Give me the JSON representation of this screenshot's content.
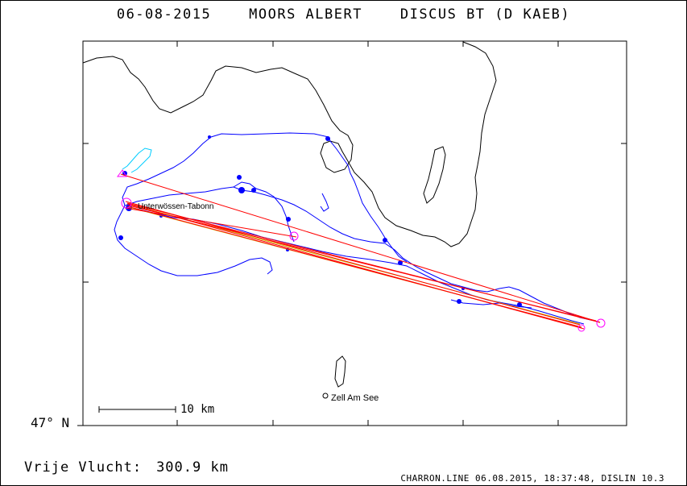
{
  "header": {
    "date": "06-08-2015",
    "pilot": "MOORS ALBERT",
    "glider": "DISCUS BT (D KAEB)"
  },
  "map": {
    "latitude_label": "47° N",
    "scale_label": "10 km",
    "place_label": "Zell Am See",
    "start_label": "Unterwössen-Tabonn",
    "colors": {
      "coastline": "#000000",
      "track": "#0000ff",
      "track_start": "#00ccff",
      "task_lines": "#ff0000",
      "turnpoints": "#ff00ff",
      "secondary_lines": "#c8c800"
    }
  },
  "summary": {
    "label": "Vrije Vlucht:",
    "distance": "300.9 km"
  },
  "footer": {
    "text": "CHARRON.LINE 06.08.2015, 18:37:48, DISLIN 10.3"
  }
}
